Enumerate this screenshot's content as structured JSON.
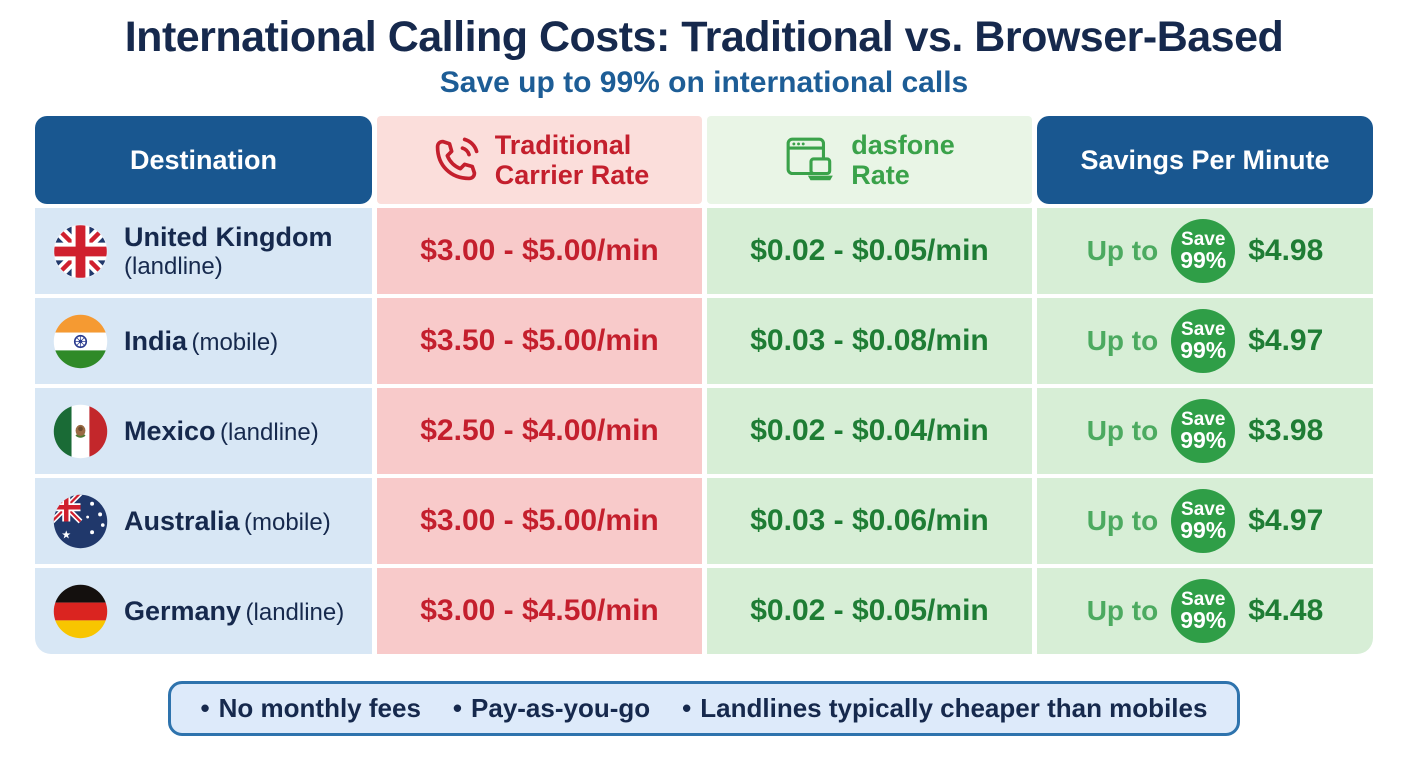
{
  "title": "International Calling Costs: Traditional vs. Browser-Based",
  "subtitle": "Save up to 99% on international calls",
  "chart_data": {
    "type": "table",
    "columns": [
      {
        "label": "Destination"
      },
      {
        "label_line1": "Traditional",
        "label_line2": "Carrier Rate",
        "icon": "phone-icon"
      },
      {
        "label_line1": "dasfone",
        "label_line2": "Rate",
        "icon": "browser-laptop-icon"
      },
      {
        "label": "Savings Per Minute"
      }
    ],
    "rows": [
      {
        "flag_icon": "uk-flag-icon",
        "country": "United Kingdom",
        "line_type": "(landline)",
        "carrier_rate": "$3.00 - $5.00/min",
        "dasfone_rate": "$0.02 - $0.05/min",
        "savings_prefix": "Up to",
        "badge_top": "Save",
        "badge_bottom": "99%",
        "savings_amount": "$4.98"
      },
      {
        "flag_icon": "india-flag-icon",
        "country": "India",
        "line_type": "(mobile)",
        "carrier_rate": "$3.50 - $5.00/min",
        "dasfone_rate": "$0.03 - $0.08/min",
        "savings_prefix": "Up to",
        "badge_top": "Save",
        "badge_bottom": "99%",
        "savings_amount": "$4.97"
      },
      {
        "flag_icon": "mexico-flag-icon",
        "country": "Mexico",
        "line_type": "(landline)",
        "carrier_rate": "$2.50 - $4.00/min",
        "dasfone_rate": "$0.02 - $0.04/min",
        "savings_prefix": "Up to",
        "badge_top": "Save",
        "badge_bottom": "99%",
        "savings_amount": "$3.98"
      },
      {
        "flag_icon": "australia-flag-icon",
        "country": "Australia",
        "line_type": "(mobile)",
        "carrier_rate": "$3.00 - $5.00/min",
        "dasfone_rate": "$0.03 - $0.06/min",
        "savings_prefix": "Up to",
        "badge_top": "Save",
        "badge_bottom": "99%",
        "savings_amount": "$4.97"
      },
      {
        "flag_icon": "germany-flag-icon",
        "country": "Germany",
        "line_type": "(landline)",
        "carrier_rate": "$3.00 - $4.50/min",
        "dasfone_rate": "$0.02 - $0.05/min",
        "savings_prefix": "Up to",
        "badge_top": "Save",
        "badge_bottom": "99%",
        "savings_amount": "$4.48"
      }
    ]
  },
  "footer": {
    "bullet": "•",
    "items": [
      "No monthly fees",
      "Pay-as-you-go",
      "Landlines typically cheaper than mobiles"
    ]
  },
  "colors": {
    "navy": "#16294d",
    "subtitle_blue": "#1d5d96",
    "hdr_blue": "#195790",
    "red": "#c41f2d",
    "pink_hdr": "#fbdedb",
    "pink_cell": "#f8caca",
    "green": "#3aa24a",
    "green_dark": "#1f7d35",
    "green_hdr": "#e9f5e6",
    "green_cell": "#d7eed6",
    "blue_cell": "#d8e7f5",
    "badge_green": "#2f9e47",
    "upto_green": "#4caa60",
    "footer_bg": "#ddeafa",
    "footer_border": "#2e73ad"
  }
}
